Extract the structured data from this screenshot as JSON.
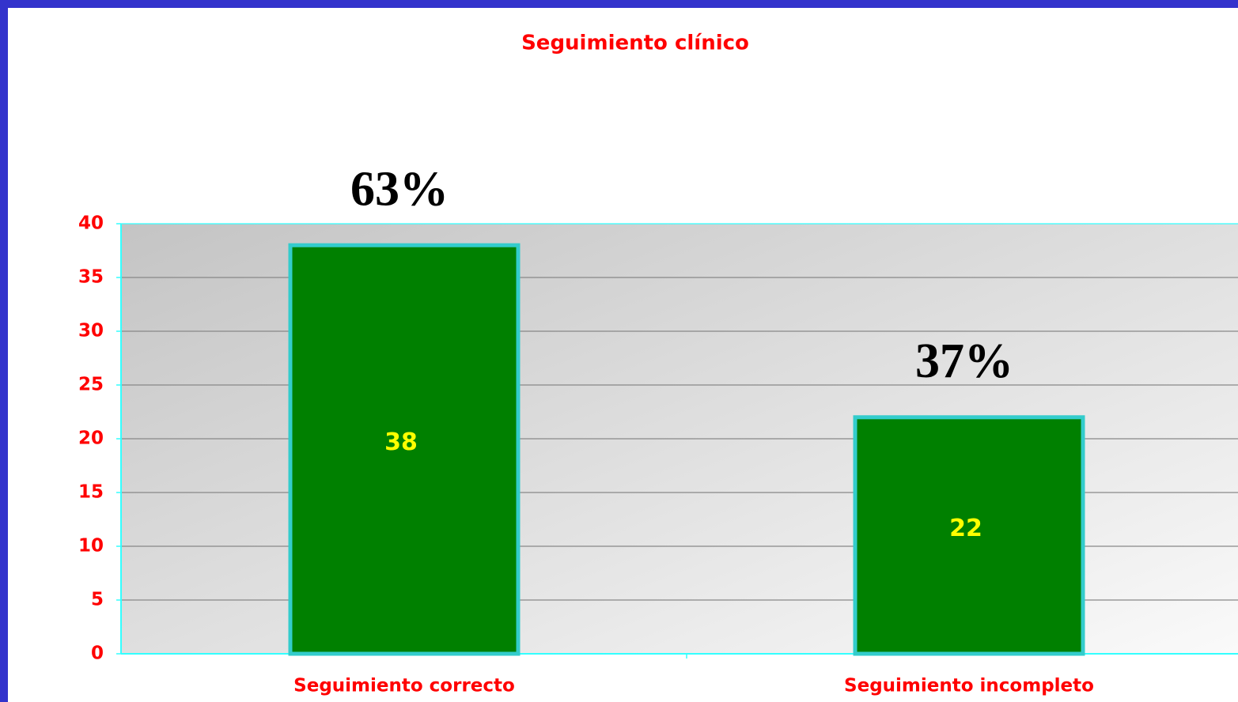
{
  "chart_data": {
    "type": "bar",
    "title": "Seguimiento clínico",
    "categories": [
      "Seguimiento correcto",
      "Seguimiento incompleto"
    ],
    "values": [
      38,
      22
    ],
    "annotations": [
      "63%",
      "37%"
    ],
    "color": "#008000",
    "edge_color": "#33cccc",
    "ylim": [
      0,
      40
    ],
    "yticks": [
      0,
      5,
      10,
      15,
      20,
      25,
      30,
      35,
      40
    ],
    "grid": true
  }
}
